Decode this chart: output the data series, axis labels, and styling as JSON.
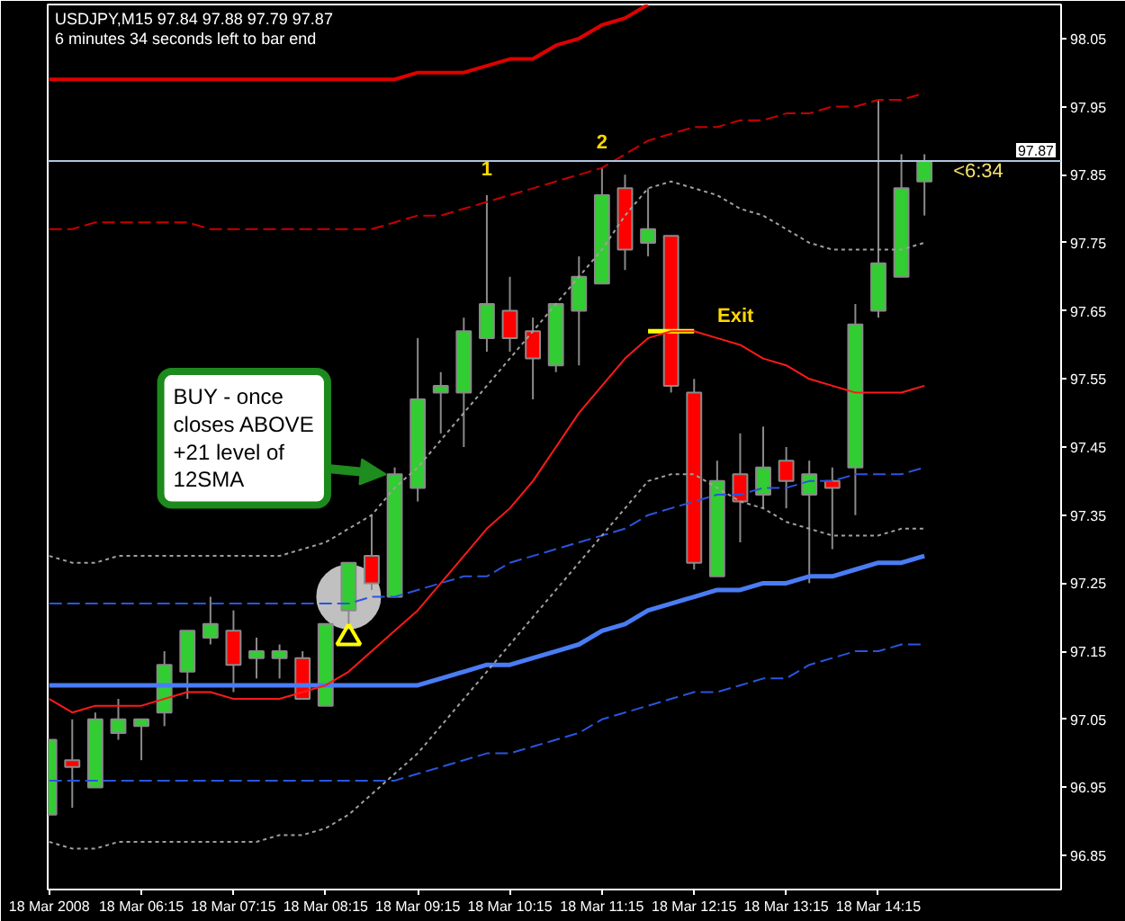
{
  "chart_data": {
    "type": "candlestick",
    "title": "USDJPY,M15 97.84 97.88 97.79 97.87",
    "subtitle": "6 minutes 34 seconds left to bar end",
    "x": [
      "2008-03-18T05:15",
      "2008-03-18T05:30",
      "2008-03-18T05:45",
      "2008-03-18T06:00",
      "2008-03-18T06:15",
      "2008-03-18T06:30",
      "2008-03-18T06:45",
      "2008-03-18T07:00",
      "2008-03-18T07:15",
      "2008-03-18T07:30",
      "2008-03-18T07:45",
      "2008-03-18T08:00",
      "2008-03-18T08:15",
      "2008-03-18T08:30",
      "2008-03-18T08:45",
      "2008-03-18T09:00",
      "2008-03-18T09:15",
      "2008-03-18T09:30",
      "2008-03-18T09:45",
      "2008-03-18T10:00",
      "2008-03-18T10:15",
      "2008-03-18T10:30",
      "2008-03-18T10:45",
      "2008-03-18T11:00",
      "2008-03-18T11:15",
      "2008-03-18T11:30",
      "2008-03-18T11:45",
      "2008-03-18T12:00",
      "2008-03-18T12:15",
      "2008-03-18T12:30",
      "2008-03-18T12:45",
      "2008-03-18T13:00",
      "2008-03-18T13:15",
      "2008-03-18T13:30",
      "2008-03-18T13:45",
      "2008-03-18T14:00",
      "2008-03-18T14:15",
      "2008-03-18T14:30",
      "2008-03-18T14:45"
    ],
    "ohlc": [
      [
        96.91,
        97.02,
        96.91,
        97.02
      ],
      [
        96.99,
        97.05,
        96.92,
        96.98
      ],
      [
        96.95,
        97.06,
        96.95,
        97.05
      ],
      [
        97.03,
        97.08,
        97.02,
        97.05
      ],
      [
        97.04,
        97.05,
        96.99,
        97.05
      ],
      [
        97.06,
        97.15,
        97.04,
        97.13
      ],
      [
        97.12,
        97.18,
        97.08,
        97.18
      ],
      [
        97.17,
        97.23,
        97.16,
        97.19
      ],
      [
        97.18,
        97.21,
        97.09,
        97.13
      ],
      [
        97.14,
        97.17,
        97.11,
        97.15
      ],
      [
        97.14,
        97.16,
        97.11,
        97.15
      ],
      [
        97.14,
        97.15,
        97.08,
        97.08
      ],
      [
        97.07,
        97.19,
        97.07,
        97.19
      ],
      [
        97.21,
        97.28,
        97.19,
        97.28
      ],
      [
        97.29,
        97.35,
        97.24,
        97.25
      ],
      [
        97.23,
        97.42,
        97.23,
        97.41
      ],
      [
        97.39,
        97.61,
        97.37,
        97.52
      ],
      [
        97.53,
        97.56,
        97.47,
        97.54
      ],
      [
        97.53,
        97.64,
        97.45,
        97.62
      ],
      [
        97.61,
        97.82,
        97.59,
        97.66
      ],
      [
        97.65,
        97.7,
        97.59,
        97.61
      ],
      [
        97.62,
        97.64,
        97.52,
        97.58
      ],
      [
        97.57,
        97.66,
        97.56,
        97.66
      ],
      [
        97.65,
        97.73,
        97.57,
        97.7
      ],
      [
        97.69,
        97.86,
        97.69,
        97.82
      ],
      [
        97.83,
        97.85,
        97.71,
        97.74
      ],
      [
        97.75,
        97.83,
        97.73,
        97.77
      ],
      [
        97.76,
        97.76,
        97.53,
        97.54
      ],
      [
        97.53,
        97.55,
        97.27,
        97.28
      ],
      [
        97.26,
        97.43,
        97.26,
        97.4
      ],
      [
        97.41,
        97.47,
        97.31,
        97.37
      ],
      [
        97.38,
        97.48,
        97.36,
        97.42
      ],
      [
        97.43,
        97.45,
        97.36,
        97.4
      ],
      [
        97.38,
        97.43,
        97.25,
        97.41
      ],
      [
        97.4,
        97.42,
        97.3,
        97.39
      ],
      [
        97.42,
        97.66,
        97.35,
        97.63
      ],
      [
        97.65,
        97.96,
        97.64,
        97.72
      ],
      [
        97.7,
        97.88,
        97.7,
        97.83
      ],
      [
        97.84,
        97.88,
        97.79,
        97.87
      ]
    ],
    "colors": [
      "#32cd32",
      "#ff0000",
      "#32cd32",
      "#32cd32",
      "#32cd32",
      "#32cd32",
      "#32cd32",
      "#32cd32",
      "#ff0000",
      "#32cd32",
      "#32cd32",
      "#ff0000",
      "#32cd32",
      "#32cd32",
      "#ff0000",
      "#32cd32",
      "#32cd32",
      "#32cd32",
      "#32cd32",
      "#32cd32",
      "#ff0000",
      "#ff0000",
      "#32cd32",
      "#32cd32",
      "#32cd32",
      "#ff0000",
      "#32cd32",
      "#ff0000",
      "#ff0000",
      "#32cd32",
      "#ff0000",
      "#32cd32",
      "#ff0000",
      "#32cd32",
      "#ff0000",
      "#32cd32",
      "#32cd32",
      "#32cd32",
      "#32cd32"
    ],
    "series": [
      {
        "type": "line",
        "color": "#e00000",
        "line_style": "solid",
        "values": [
          97.99,
          97.99,
          97.99,
          97.99,
          97.99,
          97.99,
          97.99,
          97.99,
          97.99,
          97.99,
          97.99,
          97.99,
          97.99,
          97.99,
          97.99,
          97.99,
          98.0,
          98.0,
          98.0,
          98.01,
          98.02,
          98.02,
          98.04,
          98.05,
          98.07,
          98.08,
          98.1,
          null,
          null,
          null,
          null,
          null,
          null,
          null,
          null,
          null,
          null,
          null,
          null
        ]
      },
      {
        "type": "line",
        "color": "#c80000",
        "line_style": "dashed",
        "values": [
          97.77,
          97.77,
          97.78,
          97.78,
          97.78,
          97.78,
          97.78,
          97.77,
          97.77,
          97.77,
          97.77,
          97.77,
          97.77,
          97.77,
          97.77,
          97.78,
          97.79,
          97.79,
          97.8,
          97.81,
          97.82,
          97.83,
          97.84,
          97.85,
          97.86,
          97.88,
          97.9,
          97.91,
          97.92,
          97.92,
          97.93,
          97.93,
          97.94,
          97.94,
          97.95,
          97.95,
          97.96,
          97.96,
          97.97
        ]
      },
      {
        "type": "line",
        "color": "#a0a0a0",
        "line_style": "dotted",
        "values": [
          97.29,
          97.28,
          97.28,
          97.29,
          97.29,
          97.29,
          97.29,
          97.29,
          97.29,
          97.29,
          97.29,
          97.3,
          97.31,
          97.33,
          97.35,
          97.39,
          97.42,
          97.46,
          97.5,
          97.54,
          97.58,
          97.62,
          97.66,
          97.7,
          97.74,
          97.79,
          97.83,
          97.84,
          97.83,
          97.82,
          97.8,
          97.79,
          97.77,
          97.75,
          97.74,
          97.74,
          97.74,
          97.74,
          97.75
        ]
      },
      {
        "type": "line",
        "color": "#ff1a1a",
        "line_style": "solid",
        "values": [
          97.08,
          97.06,
          97.07,
          97.07,
          97.07,
          97.08,
          97.09,
          97.09,
          97.08,
          97.08,
          97.08,
          97.09,
          97.1,
          97.12,
          97.15,
          97.18,
          97.21,
          97.25,
          97.29,
          97.33,
          97.36,
          97.4,
          97.45,
          97.5,
          97.54,
          97.58,
          97.61,
          97.62,
          97.62,
          97.61,
          97.6,
          97.58,
          97.57,
          97.55,
          97.54,
          97.53,
          97.53,
          97.53,
          97.54
        ]
      },
      {
        "type": "line",
        "color": "#a0a0a0",
        "line_style": "dotted",
        "values": [
          96.87,
          96.86,
          96.86,
          96.87,
          96.87,
          96.87,
          96.87,
          96.87,
          96.87,
          96.87,
          96.88,
          96.88,
          96.89,
          96.91,
          96.94,
          96.97,
          97.0,
          97.04,
          97.08,
          97.12,
          97.16,
          97.2,
          97.24,
          97.28,
          97.32,
          97.36,
          97.4,
          97.41,
          97.41,
          97.39,
          97.37,
          97.36,
          97.34,
          97.33,
          97.32,
          97.32,
          97.32,
          97.33,
          97.33
        ]
      },
      {
        "type": "line",
        "color": "#2a55e0",
        "line_style": "dashed",
        "values": [
          97.22,
          97.22,
          97.22,
          97.22,
          97.22,
          97.22,
          97.22,
          97.22,
          97.22,
          97.22,
          97.22,
          97.22,
          97.22,
          97.22,
          97.23,
          97.23,
          97.24,
          97.25,
          97.26,
          97.26,
          97.28,
          97.29,
          97.3,
          97.31,
          97.32,
          97.33,
          97.35,
          97.36,
          97.37,
          97.38,
          97.38,
          97.39,
          97.39,
          97.4,
          97.4,
          97.41,
          97.41,
          97.41,
          97.42
        ]
      },
      {
        "type": "line",
        "color": "#4a7cf4",
        "line_style": "solid",
        "values": [
          97.1,
          97.1,
          97.1,
          97.1,
          97.1,
          97.1,
          97.1,
          97.1,
          97.1,
          97.1,
          97.1,
          97.1,
          97.1,
          97.1,
          97.1,
          97.1,
          97.1,
          97.11,
          97.12,
          97.13,
          97.13,
          97.14,
          97.15,
          97.16,
          97.18,
          97.19,
          97.21,
          97.22,
          97.23,
          97.24,
          97.24,
          97.25,
          97.25,
          97.26,
          97.26,
          97.27,
          97.28,
          97.28,
          97.29
        ]
      },
      {
        "type": "line",
        "color": "#2a55e0",
        "line_style": "dashed",
        "values": [
          96.96,
          96.96,
          96.96,
          96.96,
          96.96,
          96.96,
          96.96,
          96.96,
          96.96,
          96.96,
          96.96,
          96.96,
          96.96,
          96.96,
          96.96,
          96.96,
          96.97,
          96.98,
          96.99,
          97.0,
          97.0,
          97.01,
          97.02,
          97.03,
          97.05,
          97.06,
          97.07,
          97.08,
          97.09,
          97.09,
          97.1,
          97.11,
          97.11,
          97.13,
          97.14,
          97.15,
          97.15,
          97.16,
          97.16
        ]
      },
      {
        "type": "line",
        "color": "#ffff00",
        "line_style": "solid",
        "x": [
          "2008-03-18T11:45",
          "2008-03-18T12:15"
        ],
        "values": [
          97.62,
          97.62
        ]
      },
      {
        "type": "scatter",
        "color": "#c0c0c0",
        "marker": "circle",
        "x": [
          "2008-03-18T08:30"
        ],
        "values": [
          97.23
        ]
      },
      {
        "type": "scatter",
        "color": "#ffff00",
        "marker": "triangle",
        "x": [
          "2008-03-18T08:30"
        ],
        "values": [
          97.17
        ]
      }
    ],
    "xlim": [
      "2008-03-18T05:14",
      "2008-03-18T16:14"
    ],
    "xticks": [
      {
        "value": "2008-03-18T05:15",
        "label": "18 Mar 2008"
      },
      {
        "value": "2008-03-18T06:15",
        "label": "18 Mar 06:15"
      },
      {
        "value": "2008-03-18T07:15",
        "label": "18 Mar 07:15"
      },
      {
        "value": "2008-03-18T08:15",
        "label": "18 Mar 08:15"
      },
      {
        "value": "2008-03-18T09:15",
        "label": "18 Mar 09:15"
      },
      {
        "value": "2008-03-18T10:15",
        "label": "18 Mar 10:15"
      },
      {
        "value": "2008-03-18T11:15",
        "label": "18 Mar 11:15"
      },
      {
        "value": "2008-03-18T12:15",
        "label": "18 Mar 12:15"
      },
      {
        "value": "2008-03-18T13:15",
        "label": "18 Mar 13:15"
      },
      {
        "value": "2008-03-18T14:15",
        "label": "18 Mar 14:15"
      }
    ],
    "ylim": [
      96.8,
      98.1
    ],
    "yticks": [
      96.85,
      96.95,
      97.05,
      97.15,
      97.25,
      97.35,
      97.45,
      97.55,
      97.65,
      97.75,
      97.85,
      97.95,
      98.05
    ],
    "ref_lines": [
      {
        "axis": "y",
        "value": 97.87,
        "label": "97.87",
        "color": "#b0c4de"
      }
    ],
    "annotations": [
      {
        "text": "BUY - once closes ABOVE +21 level of 12SMA",
        "x": "2008-03-18T09:00",
        "y": 97.41
      },
      {
        "text": "1",
        "x": "2008-03-18T10:00",
        "y": 97.82
      },
      {
        "text": "2",
        "x": "2008-03-18T11:15",
        "y": 97.86
      },
      {
        "text": "Exit",
        "x": "2008-03-18T12:15",
        "y": 97.62
      },
      {
        "text": "<6:34",
        "x": "2008-03-18T14:45",
        "y": 97.87
      }
    ],
    "grid": false
  }
}
